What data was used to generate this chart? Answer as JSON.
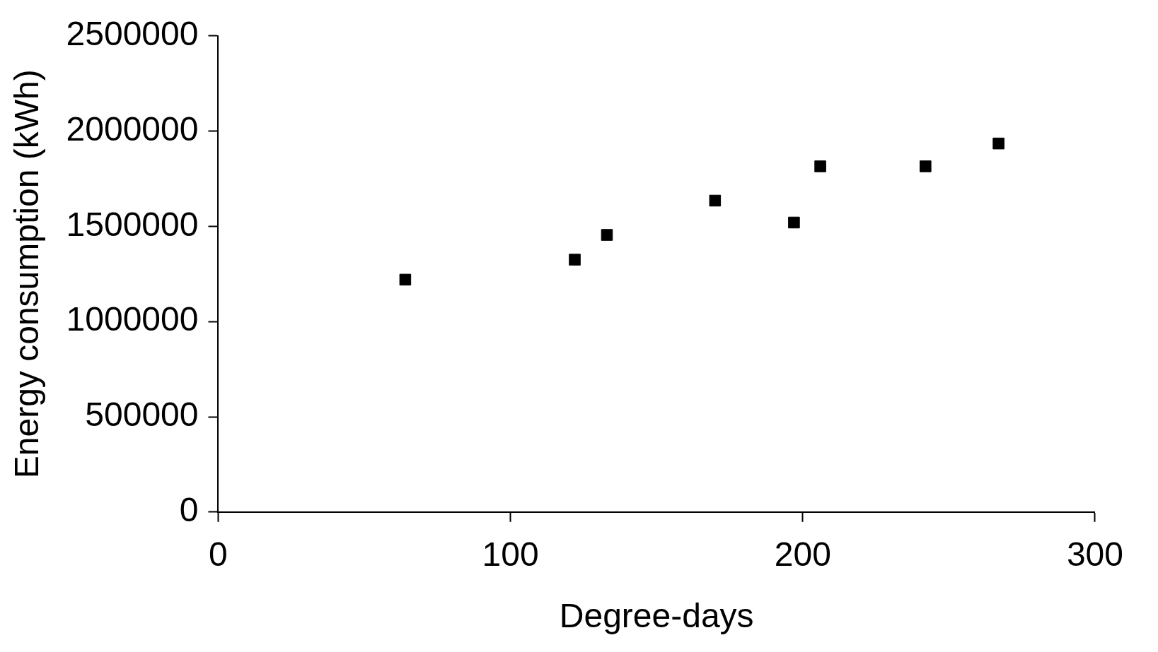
{
  "chart_data": {
    "type": "scatter",
    "xlabel": "Degree-days",
    "ylabel": "Energy consumption (kWh)",
    "x": [
      64,
      122,
      133,
      170,
      197,
      206,
      242,
      267
    ],
    "values": [
      1220000,
      1325000,
      1455000,
      1635000,
      1520000,
      1815000,
      1815000,
      1935000
    ],
    "color": "#000000",
    "marker": "square",
    "xlim": [
      0,
      300
    ],
    "xticks": [
      0,
      100,
      200,
      300
    ],
    "ylim": [
      0,
      2500000
    ],
    "yticks": [
      0,
      500000,
      1000000,
      1500000,
      2000000,
      2500000
    ],
    "grid": false,
    "legend": false
  }
}
